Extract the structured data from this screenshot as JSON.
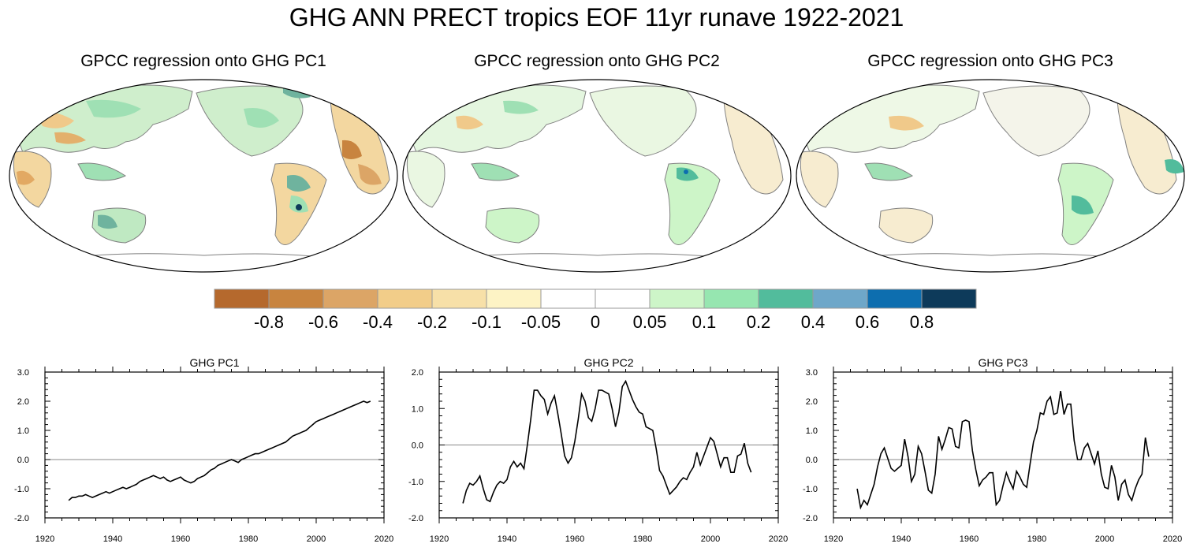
{
  "title": "GHG ANN PRECT tropics EOF 11yr runave 1922-2021",
  "maps": [
    {
      "title": "GPCC regression onto GHG PC1"
    },
    {
      "title": "GPCC regression onto GHG PC2"
    },
    {
      "title": "GPCC regression onto GHG PC3"
    }
  ],
  "colorbar": {
    "labels": [
      "-0.8",
      "-0.6",
      "-0.4",
      "-0.2",
      "-0.1",
      "-0.05",
      "0",
      "0.05",
      "0.1",
      "0.2",
      "0.4",
      "0.6",
      "0.8"
    ],
    "colors": [
      "#b5692d",
      "#c8843f",
      "#dca566",
      "#f2cd89",
      "#f7e0a8",
      "#fdf3c5",
      "#ffffff",
      "#ffffff",
      "#cdf5c8",
      "#96e6b0",
      "#52bc9c",
      "#6ea7c9",
      "#0d6eaf",
      "#0d3a5a"
    ]
  },
  "chart_data": [
    {
      "type": "line",
      "title": "GHG PC1",
      "xlim": [
        1920,
        2020
      ],
      "ylim": [
        -2.0,
        3.0
      ],
      "xticks": [
        1920,
        1940,
        1960,
        1980,
        2000,
        2020
      ],
      "yticks": [
        -2.0,
        -1.0,
        0.0,
        1.0,
        2.0,
        3.0
      ],
      "ytick_labels": [
        "-2.0",
        "-1.0",
        "0.0",
        "1.0",
        "2.0",
        "3.0"
      ],
      "x_start": 1927,
      "values": [
        -1.4,
        -1.3,
        -1.3,
        -1.25,
        -1.25,
        -1.2,
        -1.25,
        -1.3,
        -1.25,
        -1.2,
        -1.15,
        -1.1,
        -1.15,
        -1.1,
        -1.05,
        -1.0,
        -0.95,
        -1.0,
        -0.95,
        -0.9,
        -0.85,
        -0.75,
        -0.7,
        -0.65,
        -0.6,
        -0.55,
        -0.6,
        -0.65,
        -0.6,
        -0.7,
        -0.75,
        -0.7,
        -0.65,
        -0.6,
        -0.7,
        -0.75,
        -0.8,
        -0.75,
        -0.65,
        -0.6,
        -0.55,
        -0.45,
        -0.35,
        -0.3,
        -0.2,
        -0.15,
        -0.1,
        -0.05,
        0.0,
        -0.05,
        -0.1,
        0.0,
        0.05,
        0.1,
        0.15,
        0.2,
        0.2,
        0.25,
        0.3,
        0.35,
        0.4,
        0.45,
        0.5,
        0.55,
        0.6,
        0.7,
        0.8,
        0.85,
        0.9,
        0.95,
        1.0,
        1.1,
        1.2,
        1.3,
        1.35,
        1.4,
        1.45,
        1.5,
        1.55,
        1.6,
        1.65,
        1.7,
        1.75,
        1.8,
        1.85,
        1.9,
        1.95,
        2.0,
        1.95,
        2.0
      ]
    },
    {
      "type": "line",
      "title": "GHG PC2",
      "xlim": [
        1920,
        2020
      ],
      "ylim": [
        -2.0,
        2.0
      ],
      "xticks": [
        1920,
        1940,
        1960,
        1980,
        2000,
        2020
      ],
      "yticks": [
        -2.0,
        -1.0,
        0.0,
        1.0,
        2.0
      ],
      "ytick_labels": [
        "-2.0",
        "-1.0",
        "0.0",
        "1.0",
        "2.0"
      ],
      "x_start": 1927,
      "values": [
        -1.6,
        -1.25,
        -1.05,
        -1.1,
        -1.0,
        -0.85,
        -1.2,
        -1.5,
        -1.55,
        -1.3,
        -1.1,
        -1.0,
        -1.05,
        -0.95,
        -0.6,
        -0.45,
        -0.6,
        -0.5,
        -0.65,
        0.0,
        0.7,
        1.5,
        1.5,
        1.35,
        1.25,
        0.85,
        1.15,
        1.35,
        0.85,
        0.3,
        -0.3,
        -0.5,
        -0.35,
        0.1,
        0.7,
        1.4,
        1.2,
        0.75,
        0.65,
        1.0,
        1.5,
        1.5,
        1.45,
        1.4,
        1.0,
        0.5,
        0.9,
        1.6,
        1.75,
        1.5,
        1.25,
        1.05,
        0.9,
        0.85,
        0.5,
        0.45,
        0.4,
        -0.1,
        -0.7,
        -0.85,
        -1.1,
        -1.35,
        -1.25,
        -1.15,
        -1.0,
        -0.9,
        -0.95,
        -0.75,
        -0.6,
        -0.2,
        -0.55,
        -0.3,
        -0.05,
        0.2,
        0.1,
        -0.25,
        -0.6,
        -0.35,
        -0.35,
        -0.75,
        -0.75,
        -0.3,
        -0.25,
        0.05,
        -0.5,
        -0.75
      ]
    },
    {
      "type": "line",
      "title": "GHG PC3",
      "xlim": [
        1920,
        2020
      ],
      "ylim": [
        -2.0,
        3.0
      ],
      "xticks": [
        1920,
        1940,
        1960,
        1980,
        2000,
        2020
      ],
      "yticks": [
        -2.0,
        -1.0,
        0.0,
        1.0,
        2.0,
        3.0
      ],
      "ytick_labels": [
        "-2.0",
        "-1.0",
        "0.0",
        "1.0",
        "2.0",
        "3.0"
      ],
      "x_start": 1927,
      "values": [
        -1.0,
        -1.65,
        -1.4,
        -1.55,
        -1.2,
        -0.85,
        -0.25,
        0.2,
        0.4,
        0.05,
        -0.3,
        -0.4,
        -0.3,
        -0.2,
        0.7,
        0.1,
        -0.75,
        -0.5,
        0.45,
        0.2,
        -0.4,
        -1.05,
        -1.15,
        -0.5,
        0.8,
        0.35,
        0.7,
        1.1,
        1.05,
        0.45,
        0.4,
        1.3,
        1.35,
        1.3,
        0.3,
        -0.35,
        -0.9,
        -0.7,
        -0.6,
        -0.45,
        -0.45,
        -1.55,
        -1.4,
        -0.9,
        -0.45,
        -0.75,
        -1.0,
        -0.4,
        -0.6,
        -0.85,
        -0.95,
        -0.15,
        0.6,
        1.0,
        1.6,
        1.55,
        2.0,
        2.15,
        1.55,
        1.6,
        2.35,
        1.55,
        1.9,
        1.9,
        0.65,
        0.0,
        0.0,
        0.4,
        0.55,
        0.2,
        -0.15,
        0.3,
        -0.5,
        -0.95,
        -1.0,
        -0.2,
        -0.6,
        -1.4,
        -0.85,
        -0.7,
        -1.2,
        -1.4,
        -1.0,
        -0.7,
        -0.5,
        0.75,
        0.1
      ]
    }
  ]
}
